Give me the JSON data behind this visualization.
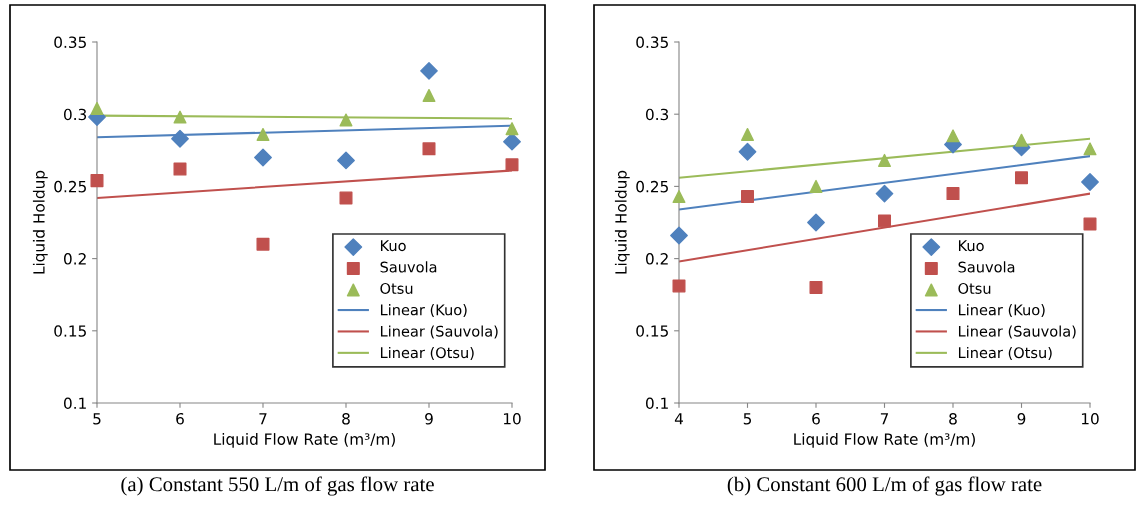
{
  "chart_data": [
    {
      "type": "scatter",
      "xlabel": "Liquid Flow Rate (m³/m)",
      "ylabel": "Liquid Holdup",
      "x": [
        5,
        6,
        7,
        8,
        9,
        10
      ],
      "xlim": [
        5,
        10
      ],
      "xticks": [
        5,
        6,
        7,
        8,
        9,
        10
      ],
      "ylim": [
        0.1,
        0.35
      ],
      "yticks": [
        0.1,
        0.15,
        0.2,
        0.25,
        0.3,
        0.35
      ],
      "grid": false,
      "legend": "bottom right",
      "series": [
        {
          "name": "Kuo",
          "color": "#4f81bd",
          "marker": "diamond",
          "values": [
            0.298,
            0.283,
            0.27,
            0.268,
            0.33,
            0.281
          ]
        },
        {
          "name": "Sauvola",
          "color": "#c0504d",
          "marker": "square",
          "values": [
            0.254,
            0.262,
            0.21,
            0.242,
            0.276,
            0.265
          ]
        },
        {
          "name": "Otsu",
          "color": "#9bbb59",
          "marker": "triangle",
          "values": [
            0.304,
            0.298,
            0.286,
            0.296,
            0.313,
            0.29
          ]
        },
        {
          "name": "Linear (Kuo)",
          "type": "line",
          "color": "#4f81bd",
          "x": [
            5,
            10
          ],
          "values": [
            0.284,
            0.292
          ]
        },
        {
          "name": "Linear (Sauvola)",
          "type": "line",
          "color": "#c0504d",
          "x": [
            5,
            10
          ],
          "values": [
            0.242,
            0.261
          ]
        },
        {
          "name": "Linear (Otsu)",
          "type": "line",
          "color": "#9bbb59",
          "x": [
            5,
            10
          ],
          "values": [
            0.299,
            0.297
          ]
        }
      ],
      "annotations": [
        "(a) Constant 550 L/m of gas flow rate"
      ]
    },
    {
      "type": "scatter",
      "xlabel": "Liquid Flow Rate (m³/m)",
      "ylabel": "Liquid Holdup",
      "x": [
        4,
        5,
        6,
        7,
        8,
        9,
        10
      ],
      "xlim": [
        4,
        10
      ],
      "xticks": [
        4,
        5,
        6,
        7,
        8,
        9,
        10
      ],
      "ylim": [
        0.1,
        0.35
      ],
      "yticks": [
        0.1,
        0.15,
        0.2,
        0.25,
        0.3,
        0.35
      ],
      "grid": false,
      "legend": "bottom right",
      "series": [
        {
          "name": "Kuo",
          "color": "#4f81bd",
          "marker": "diamond",
          "values": [
            0.216,
            0.274,
            0.225,
            0.245,
            0.279,
            0.277,
            0.253
          ]
        },
        {
          "name": "Sauvola",
          "color": "#c0504d",
          "marker": "square",
          "values": [
            0.181,
            0.243,
            0.18,
            0.226,
            0.245,
            0.256,
            0.224
          ]
        },
        {
          "name": "Otsu",
          "color": "#9bbb59",
          "marker": "triangle",
          "values": [
            0.243,
            0.286,
            0.25,
            0.268,
            0.285,
            0.282,
            0.276
          ]
        },
        {
          "name": "Linear (Kuo)",
          "type": "line",
          "color": "#4f81bd",
          "x": [
            4,
            10
          ],
          "values": [
            0.234,
            0.271
          ]
        },
        {
          "name": "Linear (Sauvola)",
          "type": "line",
          "color": "#c0504d",
          "x": [
            4,
            10
          ],
          "values": [
            0.198,
            0.245
          ]
        },
        {
          "name": "Linear (Otsu)",
          "type": "line",
          "color": "#9bbb59",
          "x": [
            4,
            10
          ],
          "values": [
            0.256,
            0.283
          ]
        }
      ],
      "annotations": [
        "(b) Constant 600 L/m of gas flow rate"
      ]
    }
  ]
}
